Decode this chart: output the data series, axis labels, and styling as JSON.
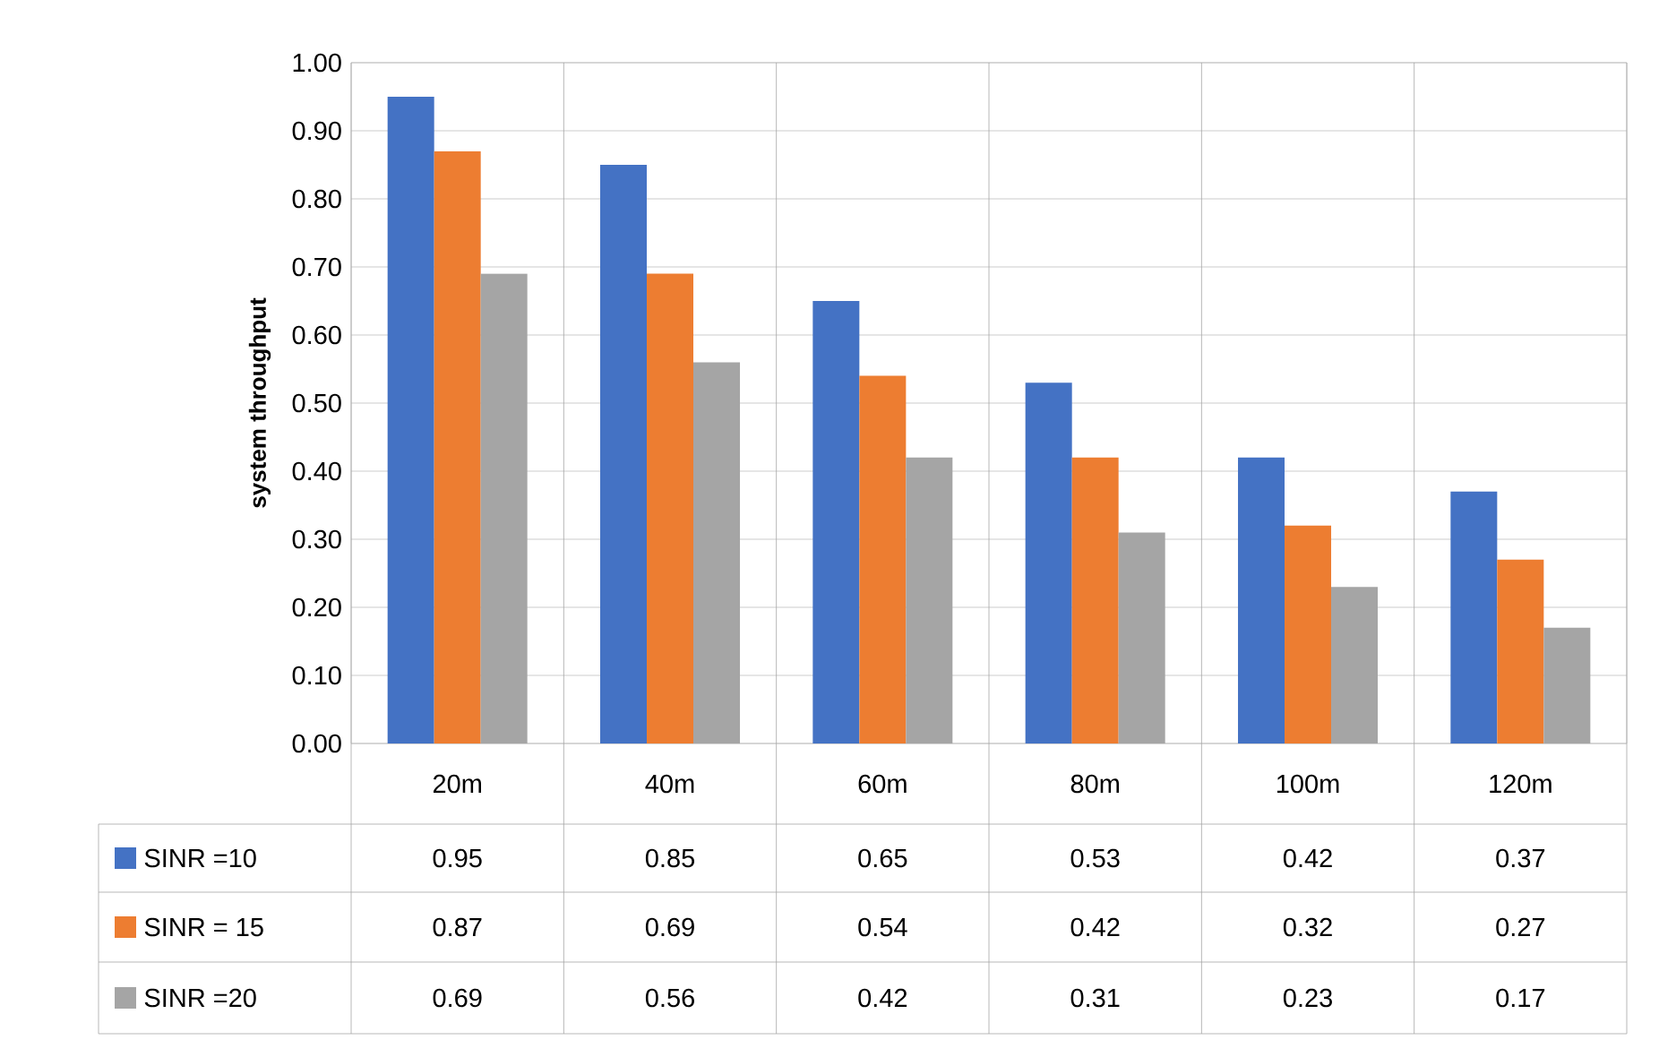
{
  "chart_data": {
    "type": "bar",
    "ylabel": "system throughput",
    "categories": [
      "20m",
      "40m",
      "60m",
      "80m",
      "100m",
      "120m"
    ],
    "series": [
      {
        "name": "SINR =10",
        "color": "#4472c4",
        "values": [
          0.95,
          0.85,
          0.65,
          0.53,
          0.42,
          0.37
        ]
      },
      {
        "name": "SINR = 15",
        "color": "#ed7d31",
        "values": [
          0.87,
          0.69,
          0.54,
          0.42,
          0.32,
          0.27
        ]
      },
      {
        "name": "SINR =20",
        "color": "#a5a5a5",
        "values": [
          0.69,
          0.56,
          0.42,
          0.31,
          0.23,
          0.17
        ]
      }
    ],
    "ylim": [
      0,
      1
    ],
    "yticks": [
      {
        "value": 0,
        "label": "0.00"
      },
      {
        "value": 0.1,
        "label": "0.10"
      },
      {
        "value": 0.2,
        "label": "0.20"
      },
      {
        "value": 0.3,
        "label": "0.30"
      },
      {
        "value": 0.4,
        "label": "0.40"
      },
      {
        "value": 0.5,
        "label": "0.50"
      },
      {
        "value": 0.6,
        "label": "0.60"
      },
      {
        "value": 0.7,
        "label": "0.70"
      },
      {
        "value": 0.8,
        "label": "0.80"
      },
      {
        "value": 0.9,
        "label": "0.90"
      },
      {
        "value": 1,
        "label": "1.00"
      }
    ],
    "grid": "y",
    "legend": "bottom",
    "data_labels": true
  }
}
